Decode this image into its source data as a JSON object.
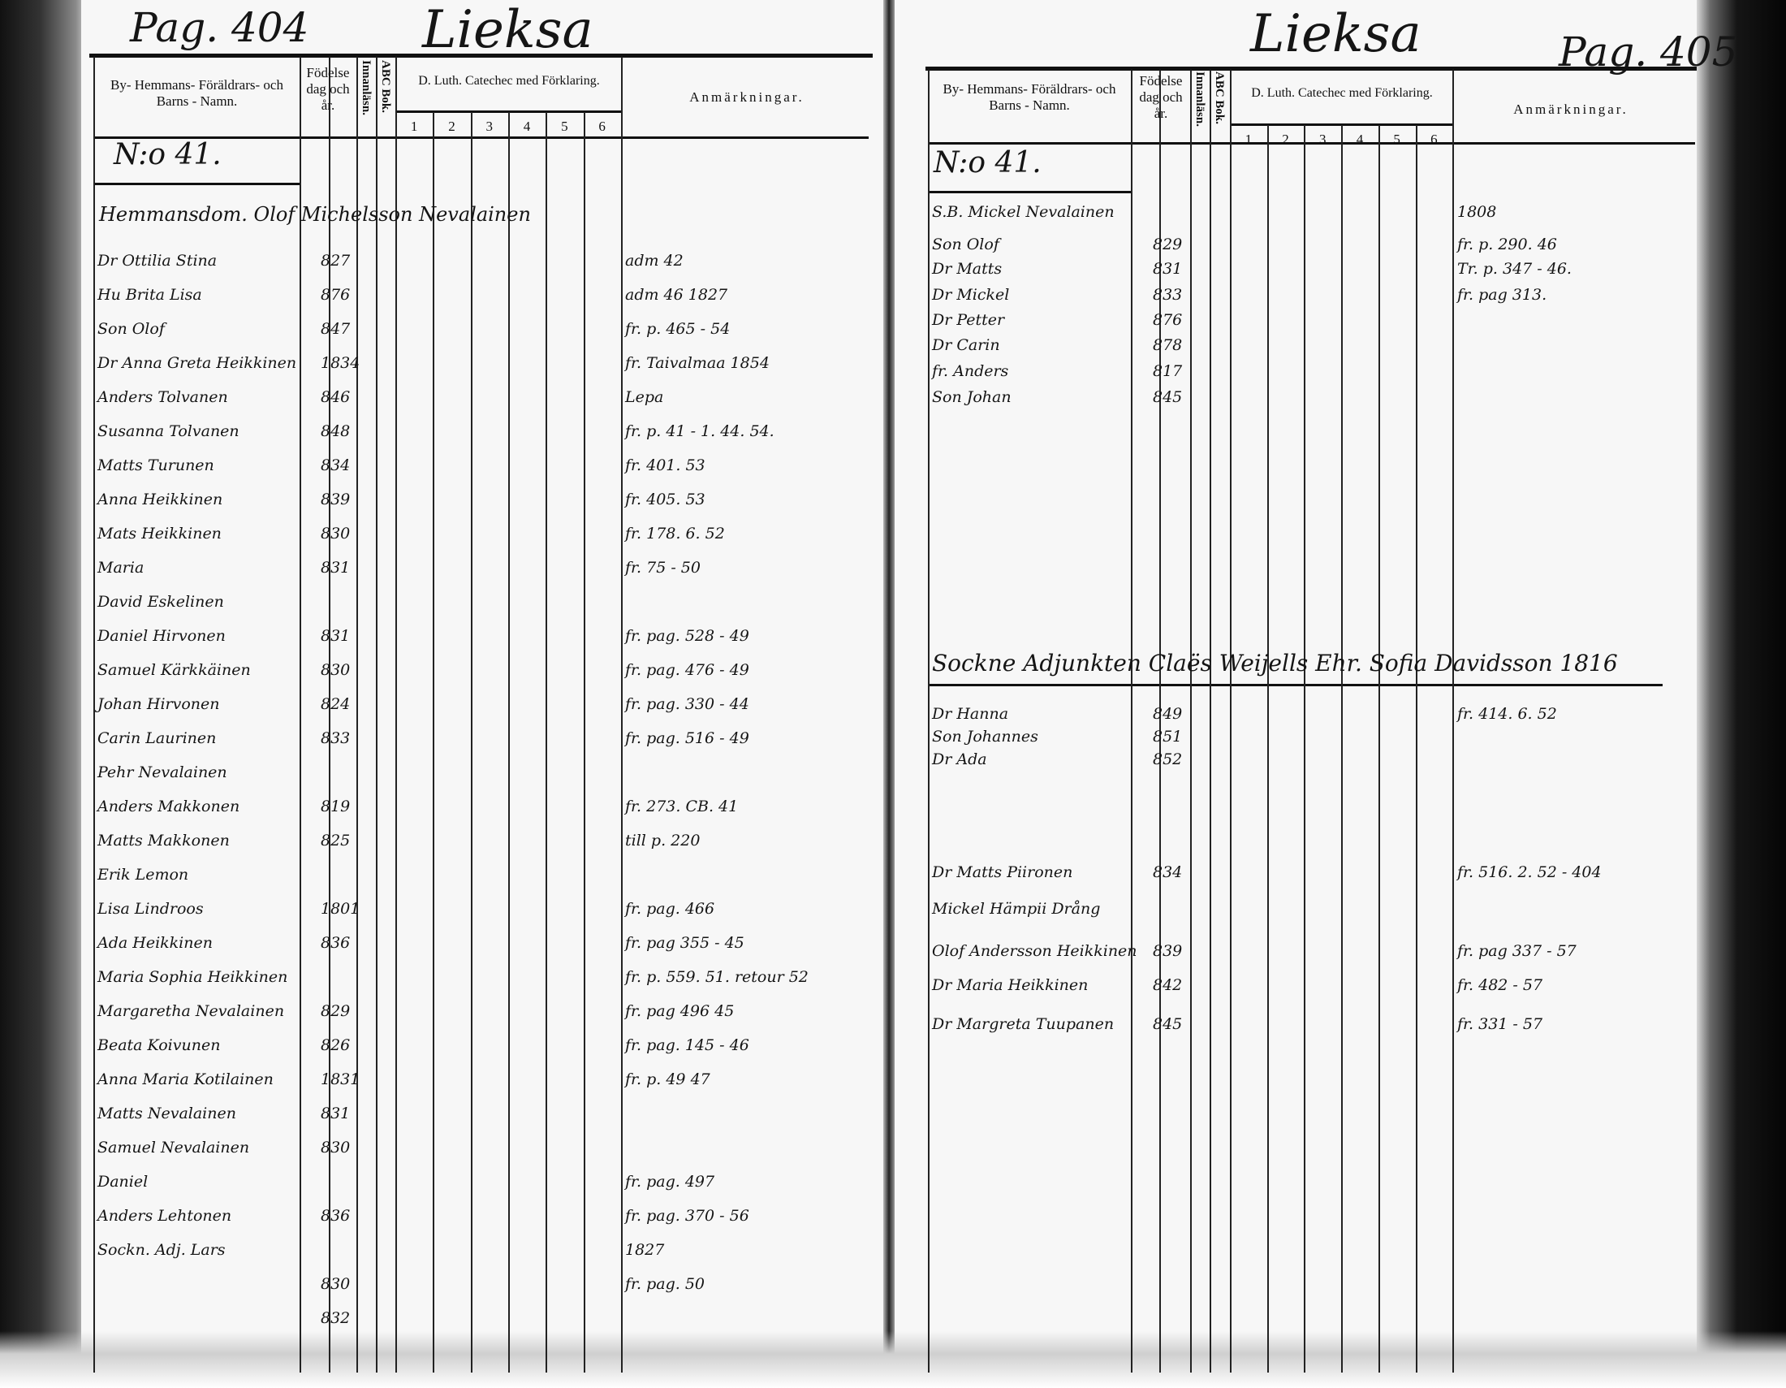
{
  "left_page": {
    "page_label": "Pag. 404",
    "parish": "Lieksa",
    "headers": {
      "name": "By- Hemmans- Föräldrars- och Barns - Namn.",
      "birth": "Födelse dag och år.",
      "innan": "Innanläsn.",
      "abc": "ABC Bok.",
      "catechism": "D. Luth. Catecheс med Förklaring.",
      "cat_cols": [
        "1",
        "2",
        "3",
        "4",
        "5",
        "6"
      ],
      "remarks": "Anmärkningar."
    },
    "household_no": "N:o 41.",
    "household_head": "Hemmansdom. Olof Michelsson Nevalainen",
    "entries": [
      {
        "name": "Dr Ottilia Stina",
        "year": "827",
        "remark": "adm 42"
      },
      {
        "name": "Hu Brita Lisa",
        "year": "876",
        "remark": "adm 46 1827"
      },
      {
        "name": "Son Olof",
        "year": "847",
        "remark": "fr. p. 465 - 54"
      },
      {
        "name": "Dr Anna Greta Heikkinen",
        "year": "1834",
        "remark": "fr. Taivalmaa 1854"
      },
      {
        "name": "Anders Tolvanen",
        "year": "846",
        "remark": "Lepa"
      },
      {
        "name": "Susanna Tolvanen",
        "year": "848",
        "remark": "fr. p. 41 - 1. 44. 54."
      },
      {
        "name": "Matts Turunen",
        "year": "834",
        "remark": "fr. 401. 53"
      },
      {
        "name": "Anna Heikkinen",
        "year": "839",
        "remark": "fr. 405. 53"
      },
      {
        "name": "Mats Heikkinen",
        "year": "830",
        "remark": "fr. 178. 6. 52"
      },
      {
        "name": "Maria",
        "year": "831",
        "remark": "fr. 75 - 50"
      },
      {
        "name": "David Eskelinen",
        "year": "",
        "remark": ""
      },
      {
        "name": "Daniel Hirvonen",
        "year": "831",
        "remark": "fr. pag. 528 - 49"
      },
      {
        "name": "Samuel Kärkkäinen",
        "year": "830",
        "remark": "fr. pag. 476 - 49"
      },
      {
        "name": "Johan Hirvonen",
        "year": "824",
        "remark": "fr. pag. 330 - 44"
      },
      {
        "name": "Carin Laurinen",
        "year": "833",
        "remark": "fr. pag. 516 - 49"
      },
      {
        "name": "Pehr Nevalainen",
        "year": "",
        "remark": ""
      },
      {
        "name": "Anders Makkonen",
        "year": "819",
        "remark": "fr. 273. CB. 41"
      },
      {
        "name": "Matts Makkonen",
        "year": "825",
        "remark": "till p. 220"
      },
      {
        "name": "Erik Lemon",
        "year": "",
        "remark": ""
      },
      {
        "name": "Lisa Lindroos",
        "year": "1801",
        "remark": "fr. pag. 466"
      },
      {
        "name": "Ada Heikkinen",
        "year": "836",
        "remark": "fr. pag 355 - 45"
      },
      {
        "name": "Maria Sophia Heikkinen",
        "year": "",
        "remark": "fr. p. 559. 51. retour 52"
      },
      {
        "name": "Margaretha Nevalainen",
        "year": "829",
        "remark": "fr. pag 496 45"
      },
      {
        "name": "Beata Koivunen",
        "year": "826",
        "remark": "fr. pag. 145 - 46"
      },
      {
        "name": "Anna Maria Kotilainen",
        "year": "1831",
        "remark": "fr. p. 49 47"
      },
      {
        "name": "Matts Nevalainen",
        "year": "831",
        "remark": ""
      },
      {
        "name": "Samuel Nevalainen",
        "year": "830",
        "remark": ""
      },
      {
        "name": "Daniel",
        "year": "",
        "remark": "fr. pag. 497"
      },
      {
        "name": "Anders Lehtonen",
        "year": "836",
        "remark": "fr. pag. 370 - 56"
      },
      {
        "name": "Sockn. Adj. Lars",
        "year": "",
        "remark": "1827"
      },
      {
        "name": "",
        "year": "830",
        "remark": "fr. pag. 50"
      },
      {
        "name": "",
        "year": "832",
        "remark": ""
      }
    ]
  },
  "right_page": {
    "page_label": "Pag. 405",
    "parish": "Lieksa",
    "headers": {
      "name": "By- Hemmans- Föräldrars- och Barns - Namn.",
      "birth": "Födelse dag och år.",
      "innan": "Innanläsn.",
      "abc": "ABC Bok.",
      "catechism": "D. Luth. Catecheс med Förklaring.",
      "cat_cols": [
        "1",
        "2",
        "3",
        "4",
        "5",
        "6"
      ],
      "remarks": "Anmärkningar."
    },
    "household_no": "N:o 41.",
    "entries": [
      {
        "name": "S.B. Mickel Nevalainen",
        "year": "",
        "remark": "1808"
      },
      {
        "name": "Son Olof",
        "year": "829",
        "remark": "fr. p. 290. 46"
      },
      {
        "name": "Dr Matts",
        "year": "831",
        "remark": "Tr. p. 347 - 46."
      },
      {
        "name": "Dr Mickel",
        "year": "833",
        "remark": "fr. pag 313."
      },
      {
        "name": "Dr Petter",
        "year": "876",
        "remark": ""
      },
      {
        "name": "Dr Carin",
        "year": "878",
        "remark": ""
      },
      {
        "name": "fr. Anders",
        "year": "817",
        "remark": ""
      },
      {
        "name": "Son Johan",
        "year": "845",
        "remark": ""
      },
      {
        "name": "Sockne Adjunkten Claës Weijells Ehr. Sofia Davidsson 1816",
        "year": "",
        "remark": ""
      },
      {
        "name": "Dr Hanna",
        "year": "849",
        "remark": "fr. 414. 6. 52"
      },
      {
        "name": "Son Johannes",
        "year": "851",
        "remark": ""
      },
      {
        "name": "Dr Ada",
        "year": "852",
        "remark": ""
      },
      {
        "name": "Dr Matts Piironen",
        "year": "834",
        "remark": "fr. 516. 2. 52 - 404"
      },
      {
        "name": "Mickel Hämpii Drång",
        "year": "",
        "remark": ""
      },
      {
        "name": "Olof Andersson Heikkinen",
        "year": "839",
        "remark": "fr. pag 337 - 57"
      },
      {
        "name": "Dr Maria Heikkinen",
        "year": "842",
        "remark": "fr. 482 - 57"
      },
      {
        "name": "Dr Margreta Tuupanen",
        "year": "845",
        "remark": "fr. 331 - 57"
      }
    ]
  }
}
